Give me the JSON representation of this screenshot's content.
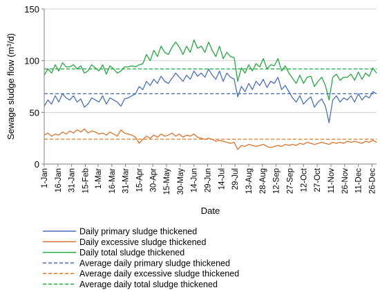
{
  "chart_data": {
    "type": "line",
    "xlabel": "Date",
    "ylabel": "Sewage sludge flow (m³/d)",
    "ylabel_main": "Sewage sludge flow (m",
    "ylabel_sup": "3",
    "ylabel_tail": "/d)",
    "ylim": [
      0,
      150
    ],
    "yticks": [
      0,
      50,
      100,
      150
    ],
    "x_tick_labels": [
      "1-Jan",
      "16-Jan",
      "31-Jan",
      "15-Feb",
      "1-Mar",
      "16-Mar",
      "31-Mar",
      "15-Apr",
      "30-Apr",
      "15-May",
      "30-May",
      "14-Jun",
      "29-Jun",
      "14-Jul",
      "29-Jul",
      "13-Aug",
      "28-Aug",
      "12-Sep",
      "27-Sep",
      "12-Oct",
      "27-Oct",
      "11-Nov",
      "26-Nov",
      "11-Dec",
      "26-Dec"
    ],
    "x_tick_day_of_year": [
      1,
      16,
      31,
      46,
      60,
      75,
      90,
      105,
      120,
      135,
      150,
      165,
      180,
      195,
      210,
      225,
      240,
      255,
      270,
      285,
      300,
      315,
      330,
      345,
      360
    ],
    "xlim_day_of_year": [
      1,
      365
    ],
    "grid": "horizontal",
    "legend_position": "bottom",
    "series": [
      {
        "name": "Daily primary sludge thickened",
        "color": "#4a6fb5",
        "style": "solid",
        "x_day_of_year": [
          1,
          5,
          9,
          13,
          17,
          21,
          25,
          29,
          33,
          37,
          41,
          45,
          49,
          53,
          57,
          61,
          65,
          69,
          73,
          77,
          81,
          85,
          89,
          93,
          97,
          101,
          105,
          109,
          113,
          117,
          121,
          125,
          129,
          133,
          137,
          141,
          145,
          149,
          153,
          157,
          161,
          165,
          169,
          173,
          177,
          181,
          185,
          189,
          193,
          197,
          201,
          205,
          209,
          213,
          217,
          221,
          225,
          229,
          233,
          237,
          241,
          245,
          249,
          253,
          257,
          261,
          265,
          269,
          273,
          277,
          281,
          285,
          289,
          293,
          297,
          301,
          305,
          309,
          313,
          317,
          321,
          325,
          329,
          333,
          337,
          341,
          345,
          349,
          353,
          357,
          361,
          365
        ],
        "values": [
          56,
          62,
          58,
          66,
          60,
          68,
          64,
          62,
          66,
          60,
          63,
          55,
          58,
          64,
          62,
          60,
          66,
          58,
          64,
          62,
          60,
          56,
          63,
          64,
          66,
          68,
          75,
          72,
          80,
          76,
          82,
          78,
          85,
          80,
          78,
          83,
          88,
          84,
          80,
          86,
          82,
          90,
          85,
          88,
          84,
          92,
          86,
          82,
          90,
          80,
          88,
          84,
          82,
          65,
          75,
          70,
          78,
          72,
          80,
          76,
          82,
          74,
          80,
          78,
          84,
          72,
          76,
          70,
          64,
          60,
          66,
          58,
          62,
          65,
          55,
          60,
          63,
          56,
          40,
          62,
          66,
          60,
          64,
          62,
          66,
          60,
          68,
          62,
          66,
          64,
          70,
          68
        ]
      },
      {
        "name": "Daily excessive sludge thickened",
        "color": "#d9742c",
        "style": "solid",
        "x_day_of_year": [
          1,
          5,
          9,
          13,
          17,
          21,
          25,
          29,
          33,
          37,
          41,
          45,
          49,
          53,
          57,
          61,
          65,
          69,
          73,
          77,
          81,
          85,
          89,
          93,
          97,
          101,
          105,
          109,
          113,
          117,
          121,
          125,
          129,
          133,
          137,
          141,
          145,
          149,
          153,
          157,
          161,
          165,
          169,
          173,
          177,
          181,
          185,
          189,
          193,
          197,
          201,
          205,
          209,
          213,
          217,
          221,
          225,
          229,
          233,
          237,
          241,
          245,
          249,
          253,
          257,
          261,
          265,
          269,
          273,
          277,
          281,
          285,
          289,
          293,
          297,
          301,
          305,
          309,
          313,
          317,
          321,
          325,
          329,
          333,
          337,
          341,
          345,
          349,
          353,
          357,
          361,
          365
        ],
        "values": [
          28,
          30,
          27,
          29,
          28,
          31,
          29,
          32,
          30,
          33,
          31,
          34,
          30,
          32,
          31,
          29,
          30,
          28,
          31,
          29,
          27,
          33,
          30,
          29,
          28,
          26,
          20,
          24,
          27,
          25,
          28,
          26,
          29,
          27,
          28,
          30,
          27,
          29,
          26,
          28,
          27,
          29,
          26,
          25,
          24,
          25,
          24,
          22,
          23,
          22,
          21,
          20,
          21,
          14,
          18,
          17,
          19,
          18,
          17,
          18,
          19,
          17,
          16,
          17,
          18,
          17,
          19,
          18,
          19,
          18,
          20,
          19,
          21,
          20,
          19,
          20,
          21,
          20,
          19,
          21,
          20,
          21,
          20,
          22,
          21,
          22,
          21,
          20,
          22,
          21,
          23,
          21
        ]
      },
      {
        "name": "Daily total sludge thickened",
        "color": "#22a843",
        "style": "solid",
        "x_day_of_year": [
          1,
          5,
          9,
          13,
          17,
          21,
          25,
          29,
          33,
          37,
          41,
          45,
          49,
          53,
          57,
          61,
          65,
          69,
          73,
          77,
          81,
          85,
          89,
          93,
          97,
          101,
          105,
          109,
          113,
          117,
          121,
          125,
          129,
          133,
          137,
          141,
          145,
          149,
          153,
          157,
          161,
          165,
          169,
          173,
          177,
          181,
          185,
          189,
          193,
          197,
          201,
          205,
          209,
          213,
          217,
          221,
          225,
          229,
          233,
          237,
          241,
          245,
          249,
          253,
          257,
          261,
          265,
          269,
          273,
          277,
          281,
          285,
          289,
          293,
          297,
          301,
          305,
          309,
          313,
          317,
          321,
          325,
          329,
          333,
          337,
          341,
          345,
          349,
          353,
          357,
          361,
          365
        ],
        "values": [
          86,
          92,
          88,
          96,
          90,
          98,
          94,
          94,
          96,
          92,
          95,
          88,
          90,
          96,
          93,
          90,
          96,
          87,
          95,
          92,
          88,
          90,
          94,
          94,
          95,
          94,
          96,
          97,
          106,
          100,
          110,
          104,
          114,
          108,
          106,
          113,
          118,
          113,
          106,
          114,
          108,
          120,
          112,
          114,
          108,
          118,
          110,
          104,
          114,
          102,
          108,
          104,
          103,
          80,
          93,
          88,
          96,
          90,
          97,
          94,
          102,
          92,
          96,
          95,
          102,
          90,
          95,
          88,
          83,
          78,
          86,
          78,
          84,
          85,
          75,
          80,
          84,
          76,
          62,
          84,
          87,
          81,
          84,
          84,
          87,
          81,
          89,
          82,
          88,
          85,
          93,
          88
        ]
      },
      {
        "name": "Average daily primary sludge thickened",
        "color": "#4a6fb5",
        "style": "dashed",
        "values": [
          68
        ]
      },
      {
        "name": "Average daily excessive sludge thickened",
        "color": "#d9742c",
        "style": "dashed",
        "values": [
          24
        ]
      },
      {
        "name": "Average daily total sludge thickened",
        "color": "#22a843",
        "style": "dashed",
        "values": [
          92
        ]
      }
    ]
  }
}
